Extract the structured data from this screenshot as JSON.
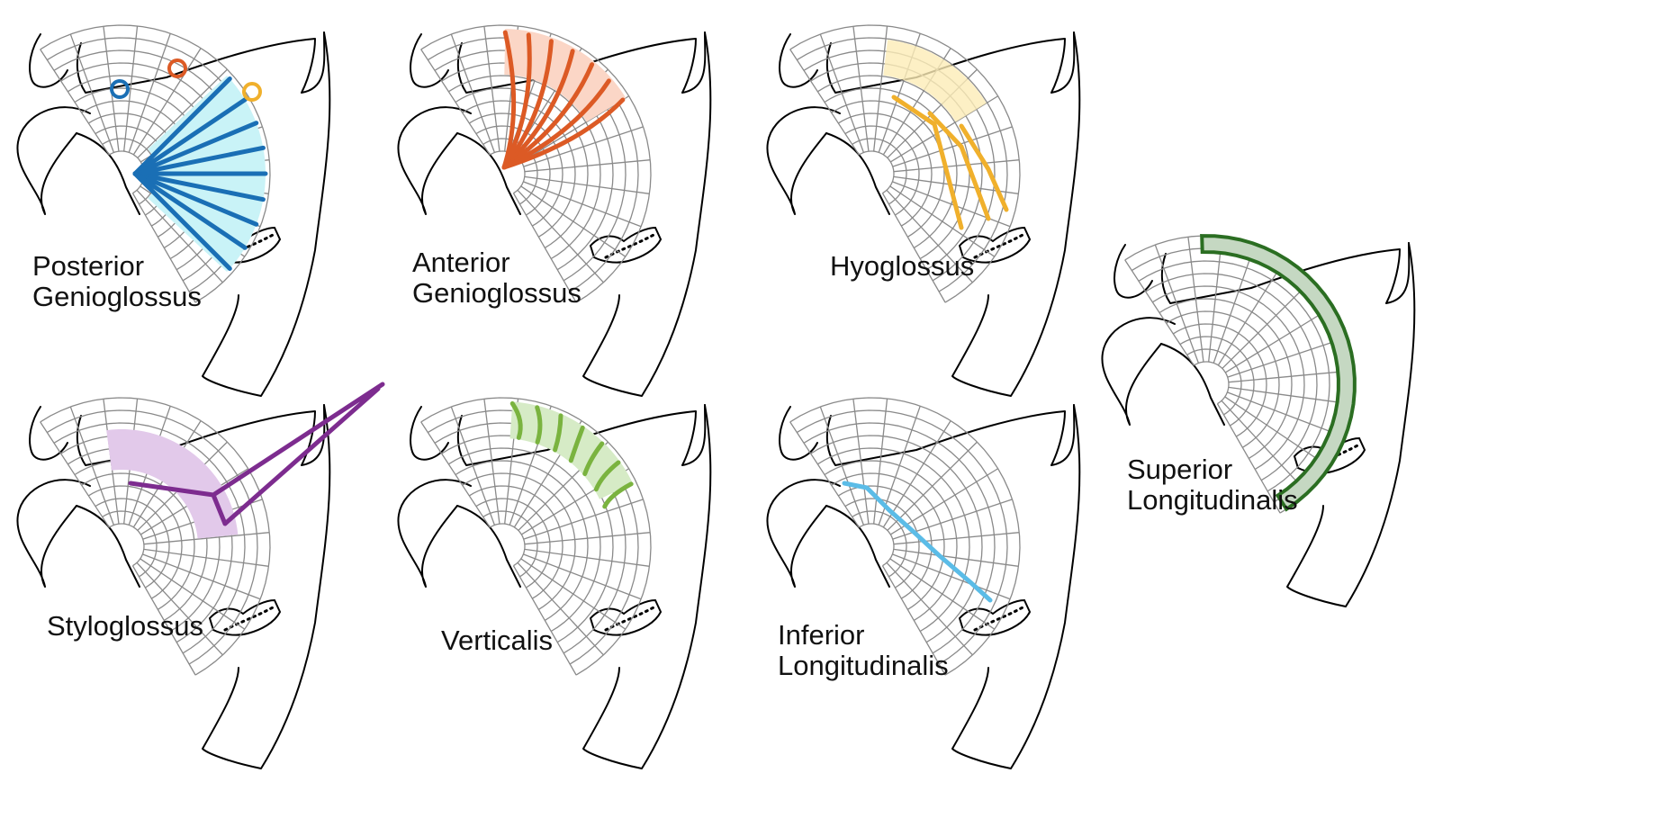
{
  "panels": [
    {
      "id": "posterior-genioglossus",
      "label_lines": [
        "Posterior",
        "Genioglossus"
      ],
      "color": "#1a6fb5",
      "fill": "#c9f3f7"
    },
    {
      "id": "anterior-genioglossus",
      "label_lines": [
        "Anterior",
        "Genioglossus"
      ],
      "color": "#dc5a25",
      "fill": "#fbd6c6"
    },
    {
      "id": "hyoglossus",
      "label_lines": [
        "Hyoglossus"
      ],
      "color": "#f0b02c",
      "fill": "#fdecb6"
    },
    {
      "id": "superior-longitudinalis",
      "label_lines": [
        "Superior",
        "Longitudinalis"
      ],
      "color": "#2b6e22",
      "fill": "#c5d8c2"
    },
    {
      "id": "styloglossus",
      "label_lines": [
        "Styloglossus"
      ],
      "color": "#7d2c8f",
      "fill": "#e2c9ea"
    },
    {
      "id": "verticalis",
      "label_lines": [
        "Verticalis"
      ],
      "color": "#7ab33f",
      "fill": "#d6ebc6"
    },
    {
      "id": "inferior-longitudinalis",
      "label_lines": [
        "Inferior",
        "Longitudinalis"
      ],
      "color": "#5bbce7",
      "fill": "#dcf1fb"
    }
  ],
  "markers": {
    "colors": [
      "#1a6fb5",
      "#dc5a25",
      "#f0b02c"
    ]
  }
}
